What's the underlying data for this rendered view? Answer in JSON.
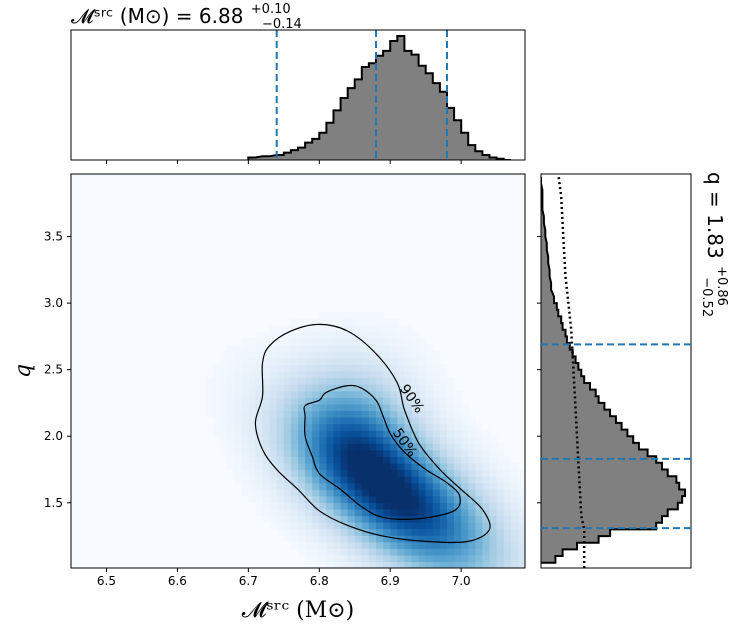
{
  "chart_data": {
    "type": "corner-plot",
    "main": {
      "type": "heatmap",
      "xlabel": "𝓜ˢʳᶜ (M⊙)",
      "ylabel": "q",
      "xlim": [
        6.45,
        7.09
      ],
      "ylim": [
        1.01,
        3.97
      ],
      "xticks": [
        6.5,
        6.6,
        6.7,
        6.8,
        6.9,
        7.0
      ],
      "xtick_labels": [
        "6.5",
        "6.6",
        "6.7",
        "6.8",
        "6.9",
        "7.0"
      ],
      "yticks": [
        1.5,
        2.0,
        2.5,
        3.0,
        3.5
      ],
      "ytick_labels": [
        "1.5",
        "2.0",
        "2.5",
        "3.0",
        "3.5"
      ],
      "colormap": "Blues",
      "density_peak": [
        6.91,
        1.55
      ],
      "contours": [
        {
          "label": "50%",
          "points": [
            [
              6.84,
              2.38
            ],
            [
              6.81,
              2.33
            ],
            [
              6.8,
              2.27
            ],
            [
              6.78,
              2.23
            ],
            [
              6.78,
              2.15
            ],
            [
              6.78,
              2.0
            ],
            [
              6.79,
              1.85
            ],
            [
              6.8,
              1.72
            ],
            [
              6.83,
              1.6
            ],
            [
              6.86,
              1.47
            ],
            [
              6.89,
              1.39
            ],
            [
              6.94,
              1.38
            ],
            [
              6.99,
              1.44
            ],
            [
              6.998,
              1.55
            ],
            [
              6.98,
              1.65
            ],
            [
              6.95,
              1.75
            ],
            [
              6.92,
              1.88
            ],
            [
              6.9,
              2.02
            ],
            [
              6.89,
              2.15
            ],
            [
              6.88,
              2.27
            ],
            [
              6.86,
              2.36
            ]
          ]
        },
        {
          "label": "90%",
          "points": [
            [
              6.8,
              2.84
            ],
            [
              6.76,
              2.79
            ],
            [
              6.73,
              2.68
            ],
            [
              6.72,
              2.55
            ],
            [
              6.72,
              2.3
            ],
            [
              6.71,
              2.1
            ],
            [
              6.72,
              1.9
            ],
            [
              6.74,
              1.75
            ],
            [
              6.77,
              1.6
            ],
            [
              6.8,
              1.44
            ],
            [
              6.84,
              1.33
            ],
            [
              6.89,
              1.25
            ],
            [
              6.95,
              1.21
            ],
            [
              7.01,
              1.21
            ],
            [
              7.04,
              1.3
            ],
            [
              7.03,
              1.45
            ],
            [
              7.0,
              1.6
            ],
            [
              6.97,
              1.75
            ],
            [
              6.94,
              1.95
            ],
            [
              6.92,
              2.2
            ],
            [
              6.91,
              2.4
            ],
            [
              6.88,
              2.62
            ],
            [
              6.84,
              2.79
            ]
          ]
        }
      ],
      "contour_labels": [
        {
          "text": "90%",
          "at": [
            6.93,
            2.28
          ],
          "rotation_deg": 55
        },
        {
          "text": "50%",
          "at": [
            6.92,
            1.95
          ],
          "rotation_deg": 55
        }
      ]
    },
    "top_histogram": {
      "type": "step-histogram",
      "title_main": "𝓜ˢʳᶜ (M⊙) = 6.88",
      "title_sup": "+0.10",
      "title_sub": "−0.14",
      "fill_color": "#808080",
      "dashed_lines_x": [
        6.74,
        6.88,
        6.98
      ],
      "dashed_color": "#1f77b4",
      "bins": [
        [
          6.7,
          2
        ],
        [
          6.72,
          3
        ],
        [
          6.74,
          4
        ],
        [
          6.75,
          6
        ],
        [
          6.76,
          8
        ],
        [
          6.77,
          10
        ],
        [
          6.78,
          14
        ],
        [
          6.79,
          17
        ],
        [
          6.8,
          22
        ],
        [
          6.81,
          30
        ],
        [
          6.82,
          40
        ],
        [
          6.83,
          50
        ],
        [
          6.84,
          58
        ],
        [
          6.85,
          65
        ],
        [
          6.86,
          75
        ],
        [
          6.87,
          78
        ],
        [
          6.88,
          84
        ],
        [
          6.89,
          88
        ],
        [
          6.9,
          96
        ],
        [
          6.91,
          100
        ],
        [
          6.92,
          88
        ],
        [
          6.93,
          85
        ],
        [
          6.94,
          76
        ],
        [
          6.95,
          70
        ],
        [
          6.96,
          62
        ],
        [
          6.97,
          55
        ],
        [
          6.98,
          42
        ],
        [
          6.99,
          32
        ],
        [
          7.0,
          22
        ],
        [
          7.01,
          12
        ],
        [
          7.02,
          7
        ],
        [
          7.03,
          4
        ],
        [
          7.04,
          2
        ],
        [
          7.05,
          1
        ],
        [
          7.06,
          0
        ]
      ]
    },
    "right_histogram": {
      "type": "step-histogram",
      "orientation": "horizontal",
      "title_main": "q = 1.83",
      "title_sup": "+0.86",
      "title_sub": "−0.52",
      "fill_color": "#808080",
      "dashed_lines_y": [
        1.31,
        1.83,
        2.69
      ],
      "dashed_color": "#1f77b4",
      "bins": [
        [
          1.05,
          10
        ],
        [
          1.1,
          15
        ],
        [
          1.15,
          25
        ],
        [
          1.2,
          40
        ],
        [
          1.25,
          48
        ],
        [
          1.3,
          80
        ],
        [
          1.35,
          84
        ],
        [
          1.4,
          88
        ],
        [
          1.45,
          95
        ],
        [
          1.5,
          98
        ],
        [
          1.55,
          100
        ],
        [
          1.6,
          96
        ],
        [
          1.65,
          94
        ],
        [
          1.7,
          88
        ],
        [
          1.75,
          84
        ],
        [
          1.8,
          80
        ],
        [
          1.85,
          74
        ],
        [
          1.9,
          68
        ],
        [
          1.95,
          64
        ],
        [
          2.0,
          60
        ],
        [
          2.05,
          56
        ],
        [
          2.1,
          52
        ],
        [
          2.15,
          48
        ],
        [
          2.2,
          44
        ],
        [
          2.25,
          40
        ],
        [
          2.3,
          38
        ],
        [
          2.35,
          34
        ],
        [
          2.4,
          30
        ],
        [
          2.45,
          28
        ],
        [
          2.5,
          26
        ],
        [
          2.55,
          24
        ],
        [
          2.6,
          22
        ],
        [
          2.65,
          20
        ],
        [
          2.7,
          18
        ],
        [
          2.75,
          17
        ],
        [
          2.8,
          15
        ],
        [
          2.85,
          14
        ],
        [
          2.9,
          12
        ],
        [
          2.95,
          11
        ],
        [
          3.0,
          9
        ],
        [
          3.1,
          7
        ],
        [
          3.2,
          6
        ],
        [
          3.3,
          5
        ],
        [
          3.4,
          4
        ],
        [
          3.5,
          3
        ],
        [
          3.6,
          2
        ],
        [
          3.7,
          1
        ],
        [
          3.8,
          1
        ],
        [
          3.9,
          0
        ]
      ],
      "prior_dotted": [
        [
          1.01,
          30
        ],
        [
          1.1,
          30
        ],
        [
          1.2,
          30
        ],
        [
          1.3,
          30
        ],
        [
          1.4,
          28
        ],
        [
          1.6,
          27
        ],
        [
          1.8,
          26
        ],
        [
          2.0,
          25
        ],
        [
          2.2,
          24
        ],
        [
          2.4,
          23
        ],
        [
          2.6,
          22
        ],
        [
          2.8,
          21
        ],
        [
          3.0,
          19
        ],
        [
          3.2,
          17
        ],
        [
          3.4,
          16
        ],
        [
          3.6,
          15
        ],
        [
          3.8,
          14
        ],
        [
          3.97,
          12
        ]
      ]
    }
  }
}
